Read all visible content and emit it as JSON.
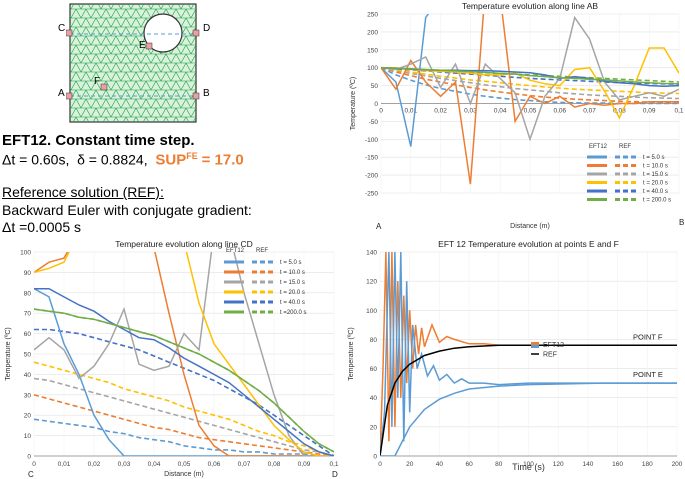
{
  "mesh": {
    "labels": {
      "C": "C",
      "D": "D",
      "E": "E",
      "F": "F",
      "A": "A",
      "B": "B"
    }
  },
  "description": {
    "heading": "EFT12. Constant time step.",
    "dt_line": "Δt = 0.60s,",
    "delta_line": "δ = 0.8824,",
    "sup_label": "SUP",
    "sup_super": "FE",
    "sup_value": "= 17.0",
    "ref_heading": "Reference solution (REF):",
    "ref_method": "Backward Euler with conjugate gradient:",
    "ref_dt": "Δt =0.0005 s"
  },
  "colors": {
    "blue": "#5b9bd5",
    "orange": "#ed7d31",
    "gray": "#a5a5a5",
    "yellow": "#ffc000",
    "darkblue": "#4472c4",
    "green": "#70ad47",
    "mesh": "#1a9e4a",
    "meshbg": "#d9f2d9"
  },
  "chart_data": [
    {
      "id": "ab",
      "type": "line",
      "title": "Temperature evolution along line AB",
      "xlabel": "Distance (m)",
      "ylabel": "Temperature (ºC)",
      "xlim": [
        0,
        0.1
      ],
      "ylim": [
        -250,
        250
      ],
      "xticks": [
        "0",
        "0,01",
        "0,02",
        "0,03",
        "0,04",
        "0,05",
        "0,06",
        "0,07",
        "0,08",
        "0,09",
        "0,1"
      ],
      "yticks": [
        -250,
        -200,
        -150,
        -100,
        -50,
        0,
        50,
        100,
        150,
        200,
        250
      ],
      "end_labels": {
        "left": "A",
        "right": "B"
      },
      "legend": {
        "col1": "EFT12",
        "col2": "REF",
        "items": [
          "t =   5.0 s",
          "t =  10.0 s",
          "t =  15.0 s",
          "t =  20.0 s",
          "t =  40.0 s",
          "t = 200.0 s"
        ]
      },
      "x": [
        0,
        0.005,
        0.01,
        0.015,
        0.02,
        0.025,
        0.03,
        0.035,
        0.04,
        0.045,
        0.05,
        0.055,
        0.06,
        0.065,
        0.07,
        0.075,
        0.08,
        0.085,
        0.09,
        0.095,
        0.1
      ],
      "eft": [
        {
          "name": "t = 5.0 s",
          "color": "blue",
          "values": [
            100,
            60,
            -120,
            240,
            300,
            300,
            300,
            300,
            300,
            300,
            300,
            300,
            300,
            300,
            300,
            300,
            300,
            300,
            300,
            300,
            300
          ]
        },
        {
          "name": "t = 10.0 s",
          "color": "orange",
          "values": [
            100,
            40,
            120,
            60,
            20,
            60,
            -225,
            320,
            300,
            -50,
            20,
            0,
            20,
            -10,
            0,
            -5,
            0,
            0,
            5,
            5,
            5
          ]
        },
        {
          "name": "t = 15.0 s",
          "color": "gray",
          "values": [
            100,
            95,
            110,
            130,
            45,
            110,
            0,
            110,
            70,
            30,
            -100,
            20,
            70,
            240,
            180,
            60,
            10,
            20,
            30,
            20,
            40
          ]
        },
        {
          "name": "t = 20.0 s",
          "color": "yellow",
          "values": [
            100,
            100,
            95,
            92,
            90,
            88,
            85,
            80,
            80,
            85,
            65,
            55,
            50,
            95,
            100,
            35,
            -40,
            50,
            155,
            155,
            85
          ]
        },
        {
          "name": "t = 40.0 s",
          "color": "darkblue",
          "values": [
            100,
            98,
            96,
            94,
            93,
            93,
            92,
            92,
            90,
            88,
            86,
            80,
            70,
            75,
            70,
            62,
            58,
            55,
            50,
            48,
            50
          ]
        },
        {
          "name": "t = 200.0 s",
          "color": "green",
          "values": [
            100,
            99,
            97,
            95,
            93,
            91,
            89,
            87,
            84,
            82,
            78,
            75,
            72,
            70,
            68,
            66,
            63,
            60,
            58,
            56,
            55
          ]
        }
      ],
      "ref": [
        {
          "name": "t = 5.0 s",
          "color": "blue",
          "values": [
            100,
            80,
            65,
            52,
            42,
            34,
            26,
            20,
            15,
            11,
            8,
            5,
            3,
            2,
            1,
            1,
            0,
            0,
            0,
            0,
            0
          ]
        },
        {
          "name": "t = 10.0 s",
          "color": "orange",
          "values": [
            100,
            88,
            78,
            68,
            60,
            52,
            45,
            38,
            32,
            27,
            22,
            18,
            15,
            12,
            10,
            8,
            6,
            5,
            4,
            3,
            3
          ]
        },
        {
          "name": "t = 15.0 s",
          "color": "gray",
          "values": [
            100,
            92,
            84,
            77,
            70,
            64,
            58,
            52,
            47,
            42,
            38,
            34,
            30,
            27,
            24,
            22,
            20,
            18,
            16,
            15,
            14
          ]
        },
        {
          "name": "t = 20.0 s",
          "color": "yellow",
          "values": [
            100,
            94,
            88,
            82,
            76,
            71,
            66,
            62,
            58,
            54,
            50,
            46,
            43,
            40,
            38,
            36,
            34,
            32,
            30,
            29,
            28
          ]
        },
        {
          "name": "t = 40.0 s",
          "color": "darkblue",
          "values": [
            100,
            97,
            94,
            91,
            88,
            85,
            82,
            79,
            76,
            73,
            70,
            68,
            66,
            64,
            62,
            60,
            58,
            57,
            56,
            55,
            54
          ]
        },
        {
          "name": "t = 200.0 s",
          "color": "green",
          "values": [
            100,
            98,
            96,
            94,
            92,
            90,
            88,
            86,
            84,
            82,
            80,
            78,
            76,
            74,
            72,
            70,
            68,
            66,
            64,
            62,
            60
          ]
        }
      ]
    },
    {
      "id": "cd",
      "type": "line",
      "title": "Temperature evolution along line CD",
      "xlabel": "Distance (m)",
      "ylabel": "Temperature (ºC)",
      "xlim": [
        0,
        0.1
      ],
      "ylim": [
        0,
        100
      ],
      "xticks": [
        "0",
        "0,01",
        "0,02",
        "0,03",
        "0,04",
        "0,05",
        "0,06",
        "0,07",
        "0,08",
        "0,09",
        "0,1"
      ],
      "yticks": [
        0,
        10,
        20,
        30,
        40,
        50,
        60,
        70,
        80,
        90,
        100
      ],
      "end_labels": {
        "left": "C",
        "right": "D"
      },
      "legend": {
        "col1": "EFT12",
        "col2": "REF",
        "items": [
          "t =   5.0 s",
          "t =  10.0 s",
          "t =  15.0 s",
          "t =  20.0 s",
          "t =  40.0 s",
          "t =200.0 s"
        ]
      },
      "x": [
        0,
        0.005,
        0.01,
        0.015,
        0.02,
        0.025,
        0.03,
        0.035,
        0.04,
        0.045,
        0.05,
        0.055,
        0.06,
        0.065,
        0.07,
        0.075,
        0.08,
        0.085,
        0.09,
        0.095,
        0.1
      ],
      "eft": [
        {
          "name": "t = 5.0 s",
          "color": "blue",
          "values": [
            82,
            78,
            55,
            40,
            20,
            8,
            0,
            0,
            0,
            0,
            0,
            0,
            0,
            0,
            0,
            0,
            0,
            0,
            0,
            0,
            0
          ]
        },
        {
          "name": "t = 10.0 s",
          "color": "orange",
          "values": [
            90,
            95,
            97,
            110,
            null,
            null,
            null,
            null,
            null,
            null,
            null,
            null,
            null,
            null,
            null,
            null,
            null,
            null,
            null,
            null,
            null
          ]
        },
        {
          "name": "t = 10.0 s b",
          "color": "orange",
          "values": [
            null,
            null,
            null,
            null,
            null,
            null,
            null,
            null,
            102,
            70,
            40,
            15,
            5,
            0,
            0,
            0,
            0,
            0,
            0,
            0,
            0
          ]
        },
        {
          "name": "t = 15.0 s",
          "color": "gray",
          "values": [
            52,
            58,
            52,
            38,
            44,
            55,
            72,
            45,
            42,
            44,
            60,
            52,
            110,
            110,
            80,
            55,
            30,
            10,
            0,
            0,
            0
          ]
        },
        {
          "name": "t = 20.0 s",
          "color": "yellow",
          "values": [
            90,
            92,
            95,
            110,
            null,
            null,
            null,
            null,
            null,
            null,
            105,
            75,
            55,
            45,
            35,
            25,
            15,
            8,
            2,
            0,
            0
          ]
        },
        {
          "name": "t = 40.0 s",
          "color": "darkblue",
          "values": [
            82,
            82,
            78,
            74,
            71,
            66,
            62,
            58,
            57,
            53,
            48,
            44,
            40,
            36,
            30,
            24,
            18,
            12,
            6,
            2,
            0
          ]
        },
        {
          "name": "t = 200.0 s",
          "color": "green",
          "values": [
            72,
            71,
            70,
            68,
            67,
            65,
            63,
            61,
            59,
            56,
            53,
            50,
            46,
            42,
            37,
            32,
            26,
            19,
            12,
            6,
            2
          ]
        }
      ],
      "ref": [
        {
          "name": "t = 5.0 s",
          "color": "blue",
          "values": [
            18,
            17,
            16,
            15,
            14,
            12,
            11,
            9,
            8,
            7,
            5,
            4,
            3,
            3,
            2,
            2,
            1,
            1,
            1,
            0,
            0
          ]
        },
        {
          "name": "t = 10.0 s",
          "color": "orange",
          "values": [
            30,
            28,
            26,
            24,
            22,
            20,
            18,
            16,
            14,
            13,
            11,
            9,
            8,
            7,
            6,
            5,
            4,
            3,
            2,
            1,
            0
          ]
        },
        {
          "name": "t = 15.0 s",
          "color": "gray",
          "values": [
            38,
            37,
            35,
            33,
            31,
            29,
            27,
            25,
            23,
            21,
            19,
            17,
            15,
            13,
            11,
            9,
            7,
            5,
            3,
            2,
            0
          ]
        },
        {
          "name": "t = 20.0 s",
          "color": "yellow",
          "values": [
            46,
            44,
            42,
            40,
            38,
            36,
            33,
            31,
            29,
            27,
            24,
            22,
            20,
            18,
            15,
            12,
            10,
            7,
            5,
            2,
            0
          ]
        },
        {
          "name": "t = 40.0 s",
          "color": "darkblue",
          "values": [
            62,
            62,
            61,
            60,
            58,
            56,
            54,
            52,
            49,
            46,
            43,
            40,
            37,
            33,
            29,
            25,
            20,
            15,
            10,
            5,
            0
          ]
        },
        {
          "name": "t = 200.0 s",
          "color": "green",
          "values": [
            72,
            71,
            70,
            68,
            67,
            65,
            63,
            61,
            59,
            56,
            53,
            50,
            46,
            42,
            37,
            32,
            26,
            19,
            12,
            6,
            2
          ]
        }
      ]
    },
    {
      "id": "ef",
      "type": "line",
      "title": "EFT 12  Temperature evolution at points E and F",
      "xlabel": "Time  (s)",
      "ylabel": "Temperature (ºC)",
      "xlim": [
        0,
        200
      ],
      "ylim": [
        0,
        140
      ],
      "xticks": [
        "0",
        "20",
        "40",
        "60",
        "80",
        "100",
        "120",
        "140",
        "160",
        "180",
        "200"
      ],
      "yticks": [
        0,
        20,
        40,
        60,
        80,
        100,
        120,
        140
      ],
      "annotations": {
        "f": "POINT F",
        "e": "POINT E"
      },
      "legend": {
        "items": [
          "EFT12",
          "REF"
        ]
      },
      "series": [
        {
          "name": "EFT12 F",
          "color": "orange",
          "x": [
            0,
            2,
            4,
            6,
            8,
            10,
            12,
            14,
            16,
            18,
            20,
            22,
            24,
            26,
            28,
            30,
            35,
            40,
            45,
            50,
            60,
            70,
            80,
            100,
            150,
            200
          ],
          "values": [
            0,
            60,
            140,
            10,
            140,
            20,
            120,
            40,
            110,
            50,
            100,
            60,
            90,
            70,
            88,
            75,
            90,
            78,
            82,
            80,
            77,
            77,
            76,
            76,
            76,
            76
          ]
        },
        {
          "name": "EFT12 E",
          "color": "blue",
          "x": [
            0,
            3,
            6,
            8,
            10,
            12,
            14,
            16,
            18,
            20,
            22,
            25,
            28,
            32,
            36,
            40,
            45,
            50,
            55,
            60,
            70,
            80,
            100,
            150,
            200
          ],
          "values": [
            0,
            30,
            140,
            20,
            140,
            40,
            140,
            10,
            120,
            30,
            90,
            60,
            70,
            55,
            62,
            52,
            56,
            50,
            53,
            50,
            50,
            49,
            50,
            50,
            50
          ]
        },
        {
          "name": "REF F",
          "color": "black",
          "x": [
            0,
            5,
            10,
            15,
            20,
            30,
            40,
            50,
            60,
            80,
            100,
            150,
            200
          ],
          "values": [
            0,
            35,
            50,
            58,
            63,
            69,
            72,
            74,
            75,
            76,
            76,
            76,
            76
          ]
        },
        {
          "name": "REF E",
          "color": "blue",
          "x": [
            0,
            10,
            15,
            20,
            30,
            40,
            50,
            60,
            80,
            100,
            150,
            200
          ],
          "values": [
            0,
            0,
            10,
            20,
            32,
            39,
            43,
            46,
            48,
            49,
            50,
            50
          ]
        }
      ]
    }
  ]
}
